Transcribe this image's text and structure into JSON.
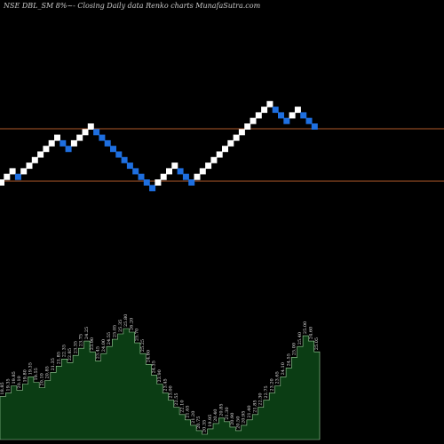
{
  "header": {
    "text": "NSE DBL_SM 8%~- Closing Daily data Renko charts MunafaSutra.com"
  },
  "colors": {
    "background": "#000000",
    "up_brick": "#ffffff",
    "down_brick": "#1e6fe0",
    "level_line": "#b05a2a",
    "volume_fill": "#0b3d14",
    "volume_stroke": "#9fd49f",
    "label_text": "#e6e6e6"
  },
  "chart_data": {
    "type": "renko",
    "title": "",
    "levels": [
      "upper",
      "lower"
    ],
    "bricks": [
      {
        "dir": "up"
      },
      {
        "dir": "up"
      },
      {
        "dir": "up"
      },
      {
        "dir": "down"
      },
      {
        "dir": "up"
      },
      {
        "dir": "up"
      },
      {
        "dir": "up"
      },
      {
        "dir": "up"
      },
      {
        "dir": "up"
      },
      {
        "dir": "up"
      },
      {
        "dir": "up"
      },
      {
        "dir": "down"
      },
      {
        "dir": "down"
      },
      {
        "dir": "up"
      },
      {
        "dir": "up"
      },
      {
        "dir": "up"
      },
      {
        "dir": "up"
      },
      {
        "dir": "down"
      },
      {
        "dir": "down"
      },
      {
        "dir": "down"
      },
      {
        "dir": "down"
      },
      {
        "dir": "down"
      },
      {
        "dir": "down"
      },
      {
        "dir": "down"
      },
      {
        "dir": "down"
      },
      {
        "dir": "down"
      },
      {
        "dir": "down"
      },
      {
        "dir": "down"
      },
      {
        "dir": "up"
      },
      {
        "dir": "up"
      },
      {
        "dir": "up"
      },
      {
        "dir": "up"
      },
      {
        "dir": "down"
      },
      {
        "dir": "down"
      },
      {
        "dir": "down"
      },
      {
        "dir": "up"
      },
      {
        "dir": "up"
      },
      {
        "dir": "up"
      },
      {
        "dir": "up"
      },
      {
        "dir": "up"
      },
      {
        "dir": "up"
      },
      {
        "dir": "up"
      },
      {
        "dir": "up"
      },
      {
        "dir": "up"
      },
      {
        "dir": "up"
      },
      {
        "dir": "up"
      },
      {
        "dir": "up"
      },
      {
        "dir": "up"
      },
      {
        "dir": "up"
      },
      {
        "dir": "down"
      },
      {
        "dir": "down"
      },
      {
        "dir": "down"
      },
      {
        "dir": "up"
      },
      {
        "dir": "up"
      },
      {
        "dir": "down"
      },
      {
        "dir": "down"
      },
      {
        "dir": "down"
      }
    ],
    "volume_labels": [
      "18.85",
      "19.35",
      "19.85",
      "20.10",
      "19.80",
      "19.35",
      "19.55",
      "20.10",
      "20.85",
      "21.35",
      "21.85",
      "22.35",
      "22.85",
      "23.35",
      "23.75",
      "24.25",
      "23.90",
      "23.45",
      "24.00",
      "24.55",
      "25.05",
      "25.35",
      "25.80",
      "26.20",
      "25.70",
      "25.25",
      "24.80",
      "24.35",
      "23.90",
      "23.45",
      "23.00",
      "22.55",
      "22.10",
      "21.65",
      "21.20",
      "20.75",
      "20.35",
      "19.95",
      "20.40",
      "20.85",
      "21.30",
      "20.90",
      "20.50",
      "20.95",
      "21.40",
      "21.85",
      "22.30",
      "22.75",
      "23.20",
      "23.65",
      "24.10",
      "24.55",
      "25.00",
      "25.40",
      "25.00",
      "24.60",
      "25.05"
    ],
    "volumes": [
      48,
      52,
      60,
      55,
      62,
      70,
      64,
      58,
      66,
      75,
      82,
      90,
      86,
      94,
      102,
      110,
      98,
      88,
      96,
      104,
      112,
      118,
      124,
      120,
      108,
      96,
      84,
      72,
      62,
      52,
      44,
      36,
      28,
      22,
      16,
      10,
      6,
      12,
      18,
      24,
      20,
      14,
      10,
      16,
      22,
      28,
      36,
      44,
      52,
      60,
      70,
      80,
      92,
      104,
      116,
      110,
      98
    ]
  }
}
